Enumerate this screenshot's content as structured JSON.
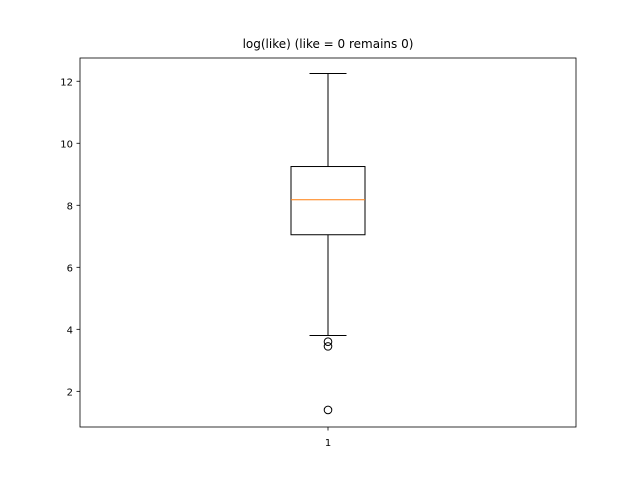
{
  "chart_data": {
    "type": "box",
    "title": "log(like) (like = 0 remains 0)",
    "xlabel": "",
    "ylabel": "",
    "categories": [
      "1"
    ],
    "ylim": [
      0.85,
      12.75
    ],
    "yticks": [
      2,
      4,
      6,
      8,
      10,
      12
    ],
    "boxes": [
      {
        "category": "1",
        "whisker_low": 3.8,
        "q1": 7.05,
        "median": 8.18,
        "q3": 9.25,
        "whisker_high": 12.25,
        "fliers": [
          3.6,
          3.45,
          1.4
        ]
      }
    ],
    "colors": {
      "box": "#000000",
      "median": "#ff7f0e",
      "axes": "#000000"
    },
    "grid": false
  }
}
